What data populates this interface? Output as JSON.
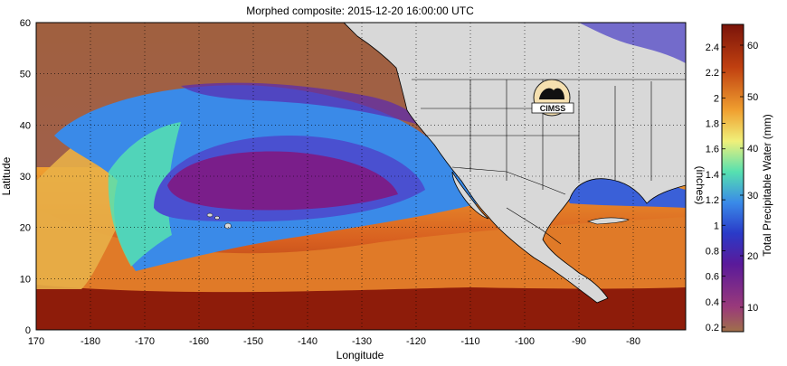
{
  "title": "Morphed composite: 2015-12-20 16:00:00 UTC",
  "xlabel": "Longitude",
  "ylabel": "Latitude",
  "x_ticks": [
    "170",
    "-180",
    "-170",
    "-160",
    "-150",
    "-140",
    "-130",
    "-120",
    "-110",
    "-100",
    "-90",
    "-80"
  ],
  "y_ticks": [
    "0",
    "10",
    "20",
    "30",
    "40",
    "50",
    "60"
  ],
  "colorbar": {
    "left_label": "(inches)",
    "right_label": "Total Precipitable Water (mm)",
    "inch_ticks": [
      "0.2",
      "0.4",
      "0.6",
      "0.8",
      "1",
      "1.2",
      "1.4",
      "1.6",
      "1.8",
      "2",
      "2.2",
      "2.4"
    ],
    "mm_ticks": [
      "10",
      "20",
      "30",
      "40",
      "50",
      "60"
    ],
    "colors": [
      "#a0704a",
      "#8a2a7a",
      "#5a1a9a",
      "#3030c0",
      "#3a8ae8",
      "#56e0b0",
      "#f0f07a",
      "#f0a030",
      "#c04010",
      "#8a1a0a"
    ]
  },
  "logo_text": "CIMSS",
  "colors": {
    "land": "#d8d8d8",
    "border": "#000000",
    "grid": "#000000",
    "dry": "#8a2a7a",
    "moist": "#3a8ae8",
    "humid": "#f0a030",
    "very_humid": "#a0280a",
    "plains_land": "#c87040"
  }
}
